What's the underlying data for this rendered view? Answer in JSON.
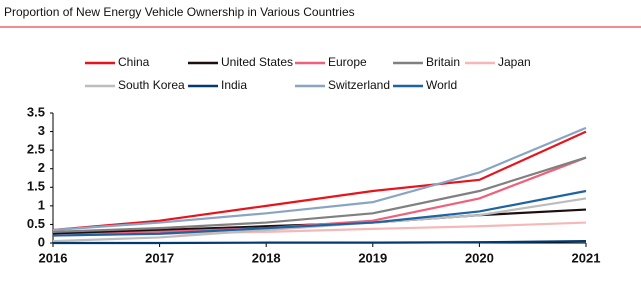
{
  "chart_data": {
    "type": "line",
    "title": "Proportion of New Energy Vehicle Ownership in Various Countries",
    "x": [
      2016,
      2017,
      2018,
      2019,
      2020,
      2021
    ],
    "xlim": [
      2016,
      2021
    ],
    "xticks": [
      2016,
      2017,
      2018,
      2019,
      2020,
      2021
    ],
    "ylim": [
      0,
      3.5
    ],
    "yticks": [
      0,
      0.5,
      1,
      1.5,
      2,
      2.5,
      3,
      3.5
    ],
    "grid": false,
    "legend": "top",
    "series": [
      {
        "name": "China",
        "color": "#e8141c",
        "values": [
          0.35,
          0.6,
          1.0,
          1.4,
          1.7,
          3.0
        ]
      },
      {
        "name": "United States",
        "color": "#1e0f0f",
        "values": [
          0.25,
          0.35,
          0.45,
          0.55,
          0.75,
          0.9
        ]
      },
      {
        "name": "Europe",
        "color": "#f0607a",
        "values": [
          0.2,
          0.3,
          0.4,
          0.6,
          1.2,
          2.3
        ]
      },
      {
        "name": "Britain",
        "color": "#808080",
        "values": [
          0.3,
          0.4,
          0.55,
          0.8,
          1.4,
          2.3
        ]
      },
      {
        "name": "Japan",
        "color": "#f5b8b8",
        "values": [
          0.2,
          0.25,
          0.3,
          0.38,
          0.45,
          0.55
        ]
      },
      {
        "name": "South Korea",
        "color": "#bdbdbd",
        "values": [
          0.05,
          0.15,
          0.35,
          0.55,
          0.75,
          1.2
        ]
      },
      {
        "name": "India",
        "color": "#003a6e",
        "values": [
          0.0,
          0.0,
          0.01,
          0.01,
          0.02,
          0.05
        ]
      },
      {
        "name": "Switzerland",
        "color": "#8aa4c4",
        "values": [
          0.35,
          0.55,
          0.8,
          1.1,
          1.9,
          3.1
        ]
      },
      {
        "name": "World",
        "color": "#1f64a0",
        "values": [
          0.2,
          0.25,
          0.4,
          0.55,
          0.85,
          1.4
        ]
      }
    ]
  }
}
